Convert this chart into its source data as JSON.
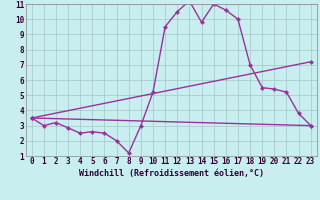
{
  "title": "",
  "xlabel": "Windchill (Refroidissement éolien,°C)",
  "ylabel": "",
  "bg_color": "#c8eef0",
  "line_color": "#993399",
  "grid_color": "#aacccc",
  "xlim": [
    -0.5,
    23.5
  ],
  "ylim": [
    1,
    11
  ],
  "xticks": [
    0,
    1,
    2,
    3,
    4,
    5,
    6,
    7,
    8,
    9,
    10,
    11,
    12,
    13,
    14,
    15,
    16,
    17,
    18,
    19,
    20,
    21,
    22,
    23
  ],
  "yticks": [
    1,
    2,
    3,
    4,
    5,
    6,
    7,
    8,
    9,
    10,
    11
  ],
  "series": [
    {
      "x": [
        0,
        1,
        2,
        3,
        4,
        5,
        6,
        7,
        8,
        9,
        10,
        11,
        12,
        13,
        14,
        15,
        16,
        17,
        18,
        19,
        20,
        21,
        22,
        23
      ],
      "y": [
        3.5,
        3.0,
        3.2,
        2.85,
        2.5,
        2.6,
        2.5,
        2.0,
        1.2,
        3.0,
        5.2,
        9.5,
        10.5,
        11.2,
        9.8,
        11.0,
        10.6,
        10.0,
        7.0,
        5.5,
        5.4,
        5.2,
        3.8,
        3.0
      ]
    },
    {
      "x": [
        0,
        23
      ],
      "y": [
        3.5,
        3.0
      ]
    },
    {
      "x": [
        0,
        23
      ],
      "y": [
        3.5,
        7.2
      ]
    }
  ],
  "marker": "D",
  "markersize": 2.5,
  "linewidth": 1.0,
  "xlabel_fontsize": 6,
  "tick_fontsize": 5.5,
  "font_family": "monospace"
}
